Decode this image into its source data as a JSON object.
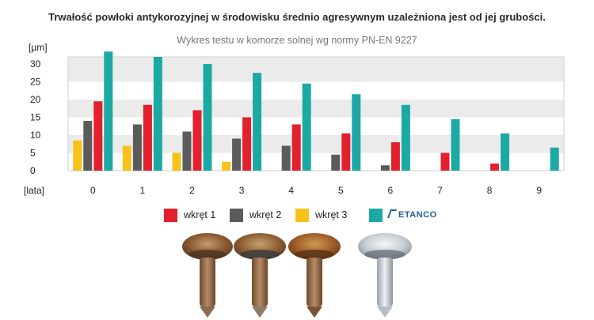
{
  "title": "Trwałość powłoki antykorozyjnej w środowisku średnio agresywnym uzależniona jest od jej grubości.",
  "subtitle": "Wykres testu w komorze solnej wg normy PN-EN 9227",
  "chart_data": {
    "type": "bar",
    "ylabel": "[µm]",
    "xlabel": "[lata]",
    "ylim": [
      0,
      32
    ],
    "yticks": [
      0,
      5,
      10,
      15,
      20,
      25,
      30
    ],
    "ytick_labels": [
      "0",
      "5",
      "10",
      "15",
      "20",
      "25",
      "30"
    ],
    "grid": "alternating horizontal bands",
    "legend_position": "bottom",
    "categories": [
      "0",
      "1",
      "2",
      "3",
      "4",
      "5",
      "6",
      "7",
      "8",
      "9"
    ],
    "series": [
      {
        "name": "wkręt 3",
        "color": "#f7c21a",
        "values": [
          8.5,
          7,
          5,
          2.5,
          null,
          null,
          null,
          null,
          null,
          null
        ]
      },
      {
        "name": "wkręt 2",
        "color": "#5b5b5b",
        "values": [
          14,
          13,
          11,
          9,
          7,
          4.5,
          1.5,
          null,
          null,
          null
        ]
      },
      {
        "name": "wkręt 1",
        "color": "#e2202e",
        "values": [
          19.5,
          18.5,
          17,
          15,
          13,
          10.5,
          8,
          5,
          2,
          null
        ]
      },
      {
        "name": "ETANCO",
        "color": "#1ca9a4",
        "values": [
          33.5,
          32,
          30,
          27.5,
          24.5,
          21.5,
          18.5,
          14.5,
          10.5,
          6.5
        ]
      }
    ]
  },
  "legend": [
    {
      "label": "wkręt 1",
      "color": "#e2202e"
    },
    {
      "label": "wkręt 2",
      "color": "#5b5b5b"
    },
    {
      "label": "wkręt 3",
      "color": "#f7c21a"
    },
    {
      "label": "ETANCO",
      "color": "#1ca9a4",
      "brand": true
    }
  ],
  "photos": {
    "screws": [
      "wkręt 1",
      "wkręt 2",
      "wkręt 3",
      "ETANCO"
    ]
  }
}
